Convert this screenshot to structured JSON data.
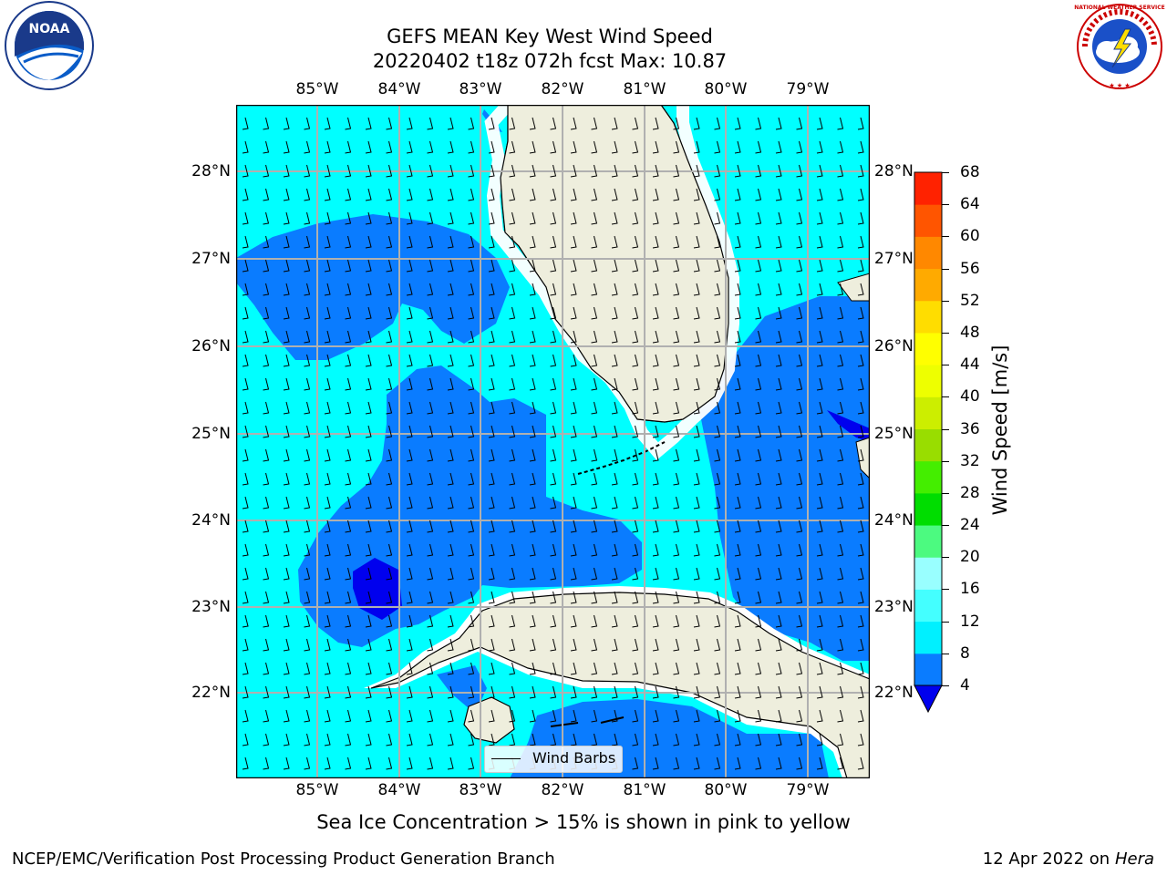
{
  "title_line1": "GEFS MEAN Key West Wind Speed",
  "title_line2": "20220402 t18z 072h fcst   Max: 10.87",
  "lon_ticks": [
    "85°W",
    "84°W",
    "83°W",
    "82°W",
    "81°W",
    "80°W",
    "79°W"
  ],
  "lat_ticks": [
    "28°N",
    "27°N",
    "26°N",
    "25°N",
    "24°N",
    "23°N",
    "22°N"
  ],
  "colorbar": {
    "label": "Wind Speed [m/s]",
    "ticks": [
      "4",
      "8",
      "12",
      "16",
      "20",
      "24",
      "28",
      "32",
      "36",
      "40",
      "44",
      "48",
      "52",
      "56",
      "60",
      "64",
      "68"
    ],
    "colors": [
      "#0a7cff",
      "#00f0ff",
      "#44ffff",
      "#99ffff",
      "#4cfa80",
      "#00dd00",
      "#44ee00",
      "#99dd00",
      "#ccee00",
      "#eeff00",
      "#ffff00",
      "#ffdd00",
      "#ffaa00",
      "#ff8800",
      "#ff5500",
      "#ff2200",
      "#ff0000"
    ],
    "under_color": "#0000ee"
  },
  "legend": {
    "label": "Wind Barbs"
  },
  "caption": "Sea Ice Concentration > 15% is shown in pink to yellow",
  "footer_left": "NCEP/EMC/Verification Post Processing Product Generation Branch",
  "footer_right_date": "12 Apr 2022 on ",
  "footer_right_machine": "Hera",
  "logos": {
    "noaa_text": "NOAA",
    "nws_text": "NATIONAL WEATHER SERVICE"
  },
  "map_colors": {
    "land": "#eeeedd",
    "light_wind": "#00ffff",
    "medium_wind": "#0a7cff",
    "strong_wind": "#0000ee",
    "grid": "#b0b0b0"
  }
}
